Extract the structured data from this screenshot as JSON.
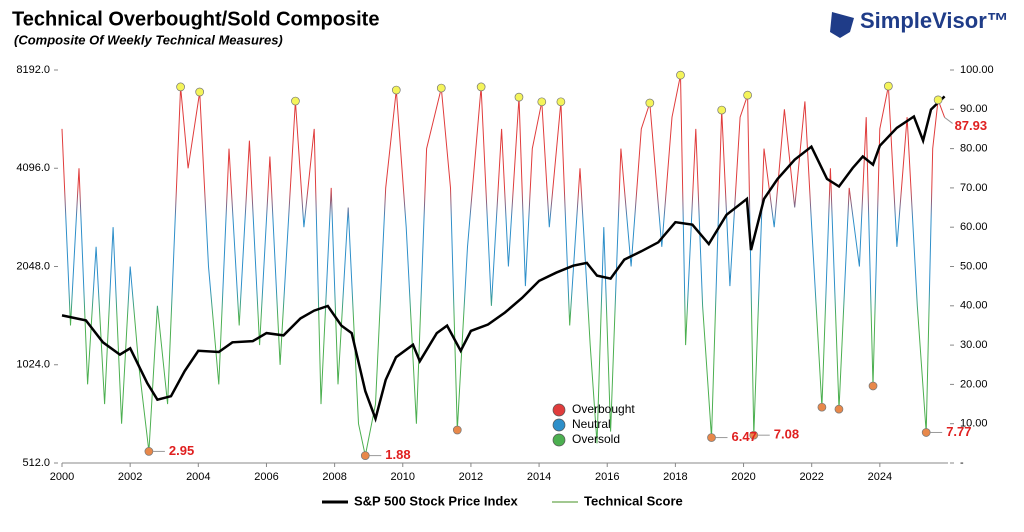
{
  "chart_data": {
    "type": "dual-axis-line",
    "title": "Technical Overbought/Sold Composite",
    "subtitle": "(Composite Of Weekly Technical Measures)",
    "brand": "SimpleVisor™",
    "xlim": [
      2000,
      2026
    ],
    "xticks": [
      2000,
      2002,
      2004,
      2006,
      2008,
      2010,
      2012,
      2014,
      2016,
      2018,
      2020,
      2022,
      2024
    ],
    "yscale": "log",
    "ylim": [
      512,
      8192
    ],
    "yticks": [
      {
        "value": 512,
        "label": "512.0"
      },
      {
        "value": 1024,
        "label": "1024.0"
      },
      {
        "value": 2048,
        "label": "2048.0"
      },
      {
        "value": 4096,
        "label": "4096.0"
      },
      {
        "value": 8192,
        "label": "8192.0"
      }
    ],
    "y2lim": [
      0,
      100
    ],
    "y2ticks": [
      {
        "value": 0,
        "label": "-"
      },
      {
        "value": 10,
        "label": "10.00"
      },
      {
        "value": 20,
        "label": "20.00"
      },
      {
        "value": 30,
        "label": "30.00"
      },
      {
        "value": 40,
        "label": "40.00"
      },
      {
        "value": 50,
        "label": "50.00"
      },
      {
        "value": 60,
        "label": "60.00"
      },
      {
        "value": 70,
        "label": "70.00"
      },
      {
        "value": 80,
        "label": "80.00"
      },
      {
        "value": 90,
        "label": "90.00"
      },
      {
        "value": 100,
        "label": "100.00"
      }
    ],
    "series": [
      {
        "name": "S&P 500 Stock Price Index",
        "color": "#000000",
        "axis": "y",
        "x": [
          2000.0,
          2000.7,
          2001.2,
          2001.7,
          2002.0,
          2002.5,
          2002.8,
          2003.2,
          2003.6,
          2004.0,
          2004.6,
          2005.0,
          2005.6,
          2006.0,
          2006.5,
          2007.0,
          2007.4,
          2007.8,
          2008.2,
          2008.5,
          2008.9,
          2009.2,
          2009.5,
          2009.8,
          2010.3,
          2010.5,
          2011.0,
          2011.3,
          2011.7,
          2012.0,
          2012.5,
          2013.0,
          2013.5,
          2014.0,
          2014.5,
          2015.0,
          2015.4,
          2015.7,
          2016.1,
          2016.5,
          2017.0,
          2017.5,
          2018.0,
          2018.5,
          2018.98,
          2019.5,
          2020.1,
          2020.22,
          2020.6,
          2021.0,
          2021.5,
          2021.99,
          2022.45,
          2022.8,
          2023.2,
          2023.5,
          2023.8,
          2024.0,
          2024.5,
          2025.0,
          2025.27,
          2025.5,
          2025.9
        ],
        "values": [
          1450,
          1400,
          1200,
          1100,
          1150,
          900,
          800,
          820,
          980,
          1130,
          1120,
          1200,
          1210,
          1280,
          1260,
          1420,
          1500,
          1550,
          1350,
          1280,
          850,
          700,
          920,
          1080,
          1180,
          1050,
          1280,
          1350,
          1130,
          1300,
          1360,
          1480,
          1640,
          1850,
          1960,
          2060,
          2100,
          1920,
          1880,
          2150,
          2280,
          2430,
          2800,
          2750,
          2400,
          2950,
          3300,
          2300,
          3300,
          3800,
          4350,
          4770,
          3800,
          3600,
          4100,
          4450,
          4200,
          4800,
          5450,
          5900,
          4980,
          6200,
          6800
        ]
      },
      {
        "name": "Technical Score",
        "color": "#6aa84f",
        "axis": "y2",
        "x": [
          2000.0,
          2000.25,
          2000.5,
          2000.75,
          2001.0,
          2001.25,
          2001.5,
          2001.75,
          2002.0,
          2002.25,
          2002.55,
          2002.8,
          2003.1,
          2003.48,
          2003.7,
          2004.04,
          2004.3,
          2004.6,
          2004.9,
          2005.2,
          2005.5,
          2005.8,
          2006.1,
          2006.4,
          2006.85,
          2007.1,
          2007.4,
          2007.6,
          2007.9,
          2008.1,
          2008.4,
          2008.7,
          2008.9,
          2009.2,
          2009.5,
          2009.81,
          2010.1,
          2010.4,
          2010.7,
          2011.13,
          2011.4,
          2011.6,
          2011.9,
          2012.3,
          2012.6,
          2012.9,
          2013.1,
          2013.41,
          2013.6,
          2013.8,
          2014.08,
          2014.3,
          2014.64,
          2014.9,
          2015.2,
          2015.5,
          2015.7,
          2015.9,
          2016.1,
          2016.4,
          2016.7,
          2017.0,
          2017.25,
          2017.6,
          2017.9,
          2018.15,
          2018.3,
          2018.6,
          2018.8,
          2019.06,
          2019.36,
          2019.6,
          2019.9,
          2020.12,
          2020.3,
          2020.6,
          2020.9,
          2021.2,
          2021.5,
          2021.8,
          2022.0,
          2022.3,
          2022.55,
          2022.8,
          2023.1,
          2023.4,
          2023.6,
          2023.8,
          2024.0,
          2024.25,
          2024.5,
          2024.8,
          2025.1,
          2025.36,
          2025.55,
          2025.71,
          2025.9
        ],
        "values": [
          85,
          35,
          75,
          20,
          55,
          15,
          60,
          10,
          50,
          25,
          2.95,
          40,
          15,
          95.7,
          75,
          94.4,
          50,
          20,
          80,
          35,
          82,
          30,
          78,
          25,
          92.1,
          60,
          85,
          15,
          70,
          20,
          65,
          10,
          1.88,
          15,
          70,
          94.9,
          60,
          10,
          80,
          95.4,
          70,
          8.4,
          55,
          95.7,
          40,
          85,
          50,
          93.1,
          45,
          80,
          91.9,
          60,
          91.9,
          35,
          75,
          30,
          5,
          60,
          8,
          80,
          50,
          85,
          91.6,
          55,
          88,
          98.7,
          30,
          85,
          40,
          6.47,
          89.8,
          45,
          88,
          93.6,
          7.08,
          80,
          60,
          90,
          65,
          92,
          60,
          14.2,
          75,
          13.7,
          70,
          50,
          88,
          19.6,
          85,
          95.9,
          55,
          88,
          40,
          7.77,
          80,
          92.4,
          87.93
        ]
      }
    ],
    "zones": [
      {
        "name": "Overbought",
        "color": "#e03c3c"
      },
      {
        "name": "Neutral",
        "color": "#2e8fc9"
      },
      {
        "name": "Oversold",
        "color": "#4caf50"
      }
    ],
    "high_markers": {
      "color": "#f4f45a",
      "x": [
        2003.48,
        2004.04,
        2006.85,
        2009.81,
        2011.13,
        2012.3,
        2013.41,
        2014.08,
        2014.64,
        2017.25,
        2018.15,
        2019.36,
        2020.12,
        2024.25,
        2025.71
      ],
      "values": [
        95.7,
        94.4,
        92.1,
        94.9,
        95.4,
        95.7,
        93.1,
        91.9,
        91.9,
        91.6,
        98.7,
        89.8,
        93.6,
        95.9,
        92.4
      ]
    },
    "low_markers": {
      "color": "#e8884a",
      "x": [
        2002.55,
        2008.9,
        2019.06,
        2020.3,
        2025.36
      ],
      "values": [
        2.95,
        1.88,
        6.47,
        7.08,
        7.77
      ]
    },
    "other_low_markers": {
      "color": "#e8884a",
      "x": [
        2011.6,
        2022.3,
        2022.8,
        2023.8
      ],
      "values": [
        8.4,
        14.2,
        13.7,
        19.6
      ]
    },
    "last_value": {
      "x": 2025.9,
      "value": 87.93
    }
  }
}
